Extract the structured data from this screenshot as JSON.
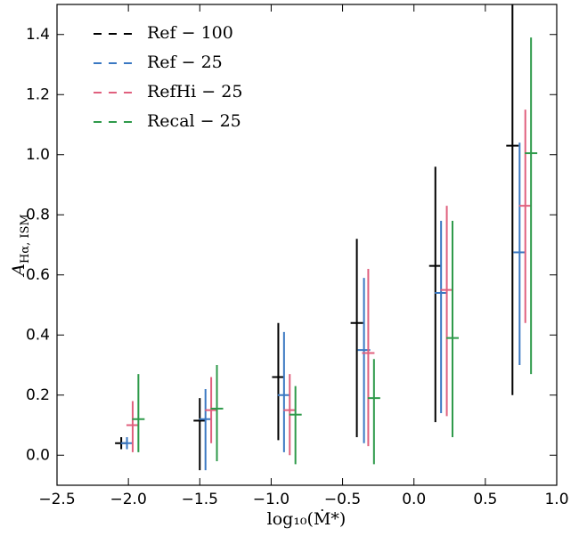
{
  "chart_data": {
    "type": "errorbar",
    "xlabel": "log₁₀(Ṁ*)",
    "ylabel": {
      "main": "A",
      "sub": "Hα, ISM"
    },
    "xlim": [
      -2.5,
      1.0
    ],
    "xticks": [
      {
        "value": -2.5,
        "label": "−2.5"
      },
      {
        "value": -2,
        "label": "−2.0"
      },
      {
        "value": -1.5,
        "label": "−1.5"
      },
      {
        "value": -1,
        "label": "−1.0"
      },
      {
        "value": -0.5,
        "label": "−0.5"
      },
      {
        "value": 0,
        "label": "0.0"
      },
      0.5,
      {
        "value": 1,
        "label": "1.0"
      }
    ],
    "ylim": [
      -0.1,
      1.5
    ],
    "yticks": [
      {
        "value": 0,
        "label": "0.0"
      },
      0.2,
      0.4,
      0.6,
      0.8,
      {
        "value": 1,
        "label": "1.0"
      },
      1.2,
      1.4
    ],
    "legend": "upper left",
    "series": [
      {
        "name": "Ref − 100",
        "color": "#000000",
        "x": [
          -2.05,
          -1.5,
          -0.95,
          -0.4,
          0.15,
          0.69
        ],
        "values": [
          0.04,
          0.115,
          0.26,
          0.44,
          0.63,
          1.03
        ],
        "lower": [
          0.02,
          -0.05,
          0.05,
          0.06,
          0.11,
          0.2
        ],
        "upper": [
          0.06,
          0.19,
          0.44,
          0.72,
          0.96,
          1.5
        ]
      },
      {
        "name": "Ref − 25",
        "color": "#3a78c2",
        "x": [
          -2.01,
          -1.46,
          -0.91,
          -0.35,
          0.19,
          0.74
        ],
        "values": [
          0.04,
          0.12,
          0.2,
          0.35,
          0.54,
          0.675
        ],
        "lower": [
          0.02,
          -0.05,
          0.01,
          0.04,
          0.14,
          0.3
        ],
        "upper": [
          0.06,
          0.22,
          0.41,
          0.59,
          0.78,
          1.04
        ]
      },
      {
        "name": "RefHi − 25",
        "color": "#e0607e",
        "x": [
          -1.97,
          -1.42,
          -0.87,
          -0.32,
          0.23,
          0.78
        ],
        "values": [
          0.1,
          0.15,
          0.15,
          0.34,
          0.55,
          0.83
        ],
        "lower": [
          0.01,
          0.04,
          0.0,
          0.03,
          0.13,
          0.44
        ],
        "upper": [
          0.18,
          0.26,
          0.27,
          0.62,
          0.83,
          1.15
        ]
      },
      {
        "name": "Recal − 25",
        "color": "#2e9a4a",
        "x": [
          -1.93,
          -1.38,
          -0.83,
          -0.28,
          0.27,
          0.82
        ],
        "values": [
          0.12,
          0.155,
          0.135,
          0.19,
          0.39,
          1.005
        ],
        "lower": [
          0.01,
          -0.02,
          -0.03,
          -0.03,
          0.06,
          0.27
        ],
        "upper": [
          0.27,
          0.3,
          0.23,
          0.32,
          0.78,
          1.39
        ]
      }
    ]
  }
}
